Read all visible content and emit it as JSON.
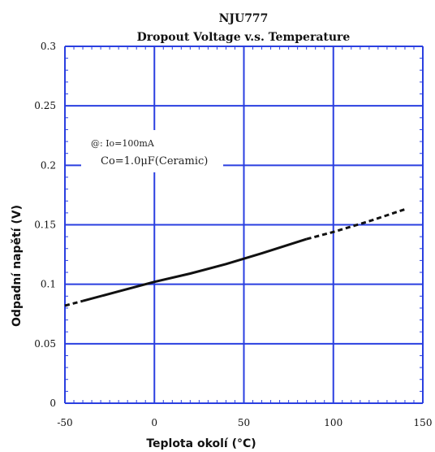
{
  "chart_data": {
    "type": "line",
    "title": "NJU777",
    "subtitle": "Dropout Voltage v.s. Temperature",
    "xlabel": "Teplota okolí (°C)",
    "ylabel": "Odpadní napětí (V)",
    "xlim": [
      -50,
      150
    ],
    "ylim": [
      0,
      0.3
    ],
    "xticks": [
      -50,
      0,
      50,
      100,
      150
    ],
    "xtick_labels": [
      "-50",
      "0",
      "50",
      "100",
      "150"
    ],
    "yticks": [
      0,
      0.05,
      0.1,
      0.15,
      0.2,
      0.25,
      0.3
    ],
    "ytick_labels": [
      "0",
      "0.05",
      "0.1",
      "0.15",
      "0.2",
      "0.25",
      "0.3"
    ],
    "grid": true,
    "annotations": [
      "@: Io=100mA",
      "Co=1.0μF(Ceramic)"
    ],
    "series": [
      {
        "style": "dashed",
        "x": [
          -50,
          -40
        ],
        "y": [
          0.082,
          0.086
        ]
      },
      {
        "style": "solid",
        "x": [
          -40,
          -20,
          0,
          20,
          40,
          60,
          85
        ],
        "y": [
          0.086,
          0.094,
          0.102,
          0.109,
          0.117,
          0.126,
          0.138
        ]
      },
      {
        "style": "dashed",
        "x": [
          85,
          100,
          120,
          140
        ],
        "y": [
          0.138,
          0.144,
          0.153,
          0.163
        ]
      }
    ],
    "colors": {
      "grid": "#2a3fe0",
      "line": "#111111"
    }
  }
}
